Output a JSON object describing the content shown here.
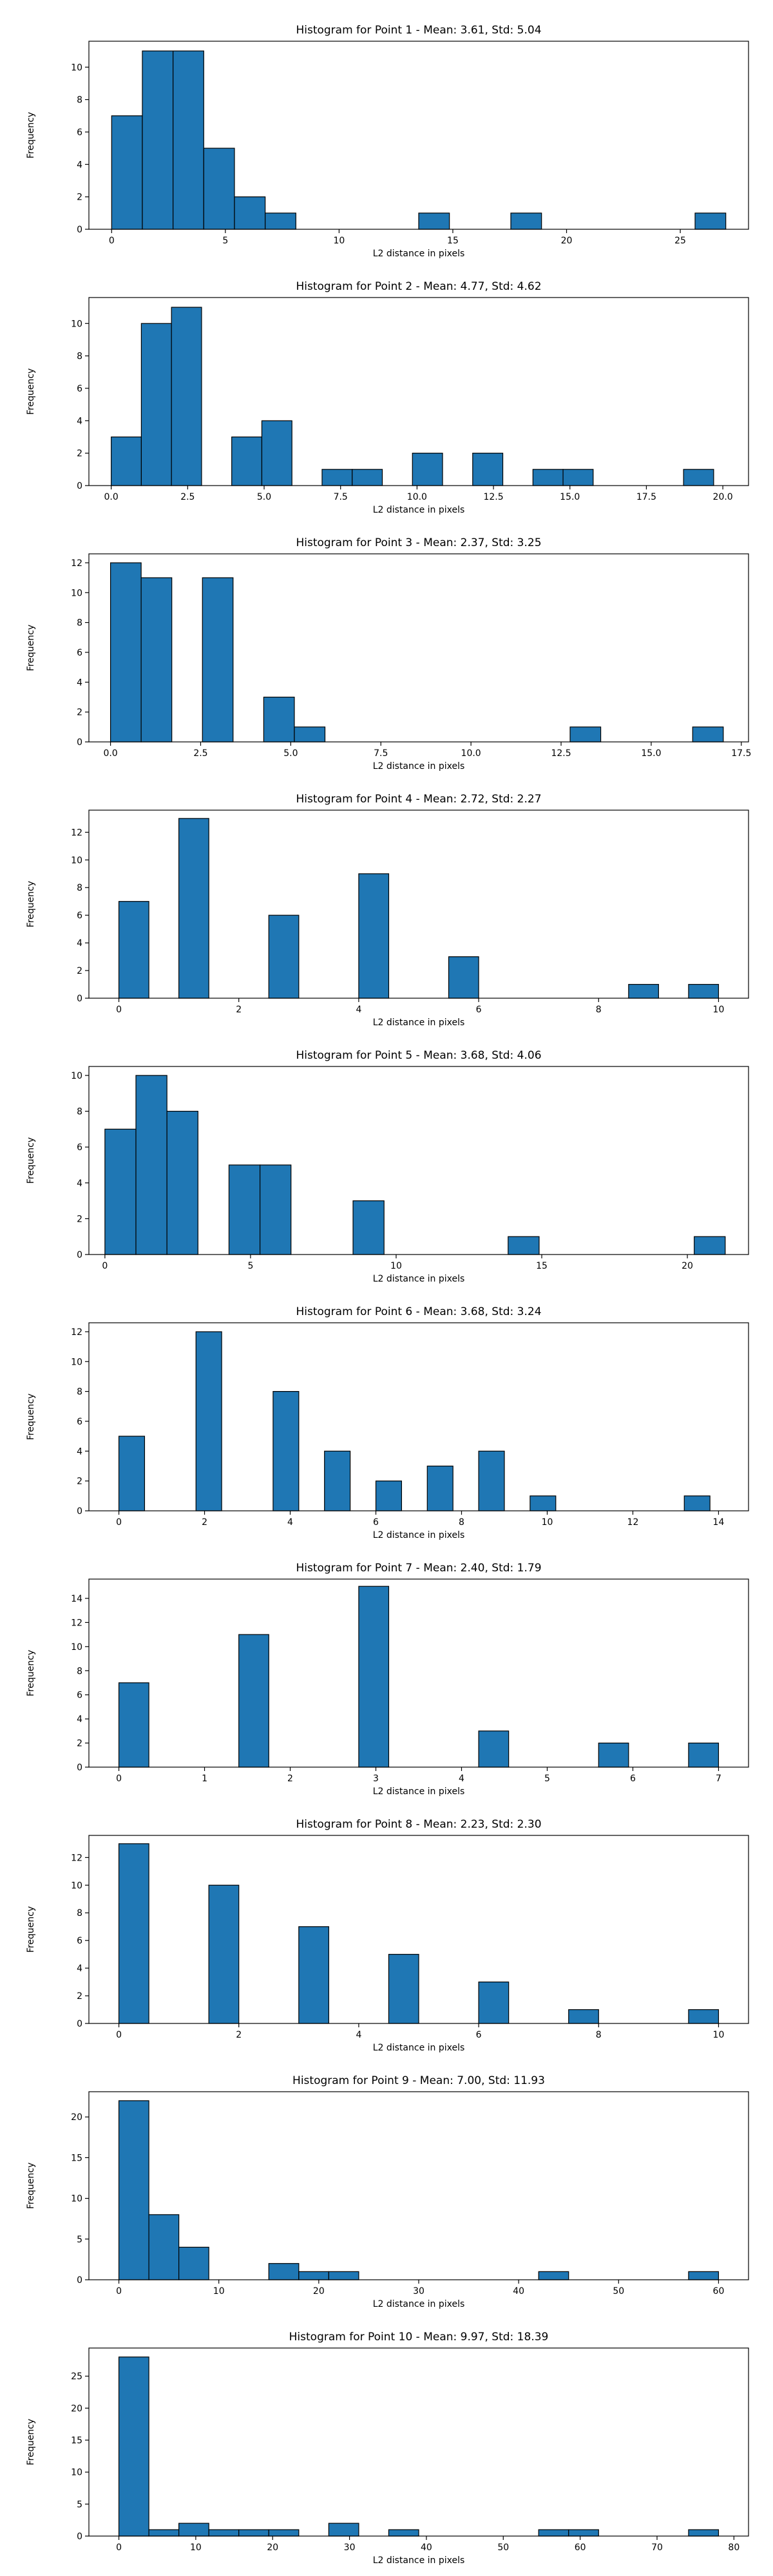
{
  "chart_data": [
    {
      "type": "bar",
      "title": "Histogram for Point 1 - Mean: 3.61, Std: 5.04",
      "xlabel": "L2 distance in pixels",
      "ylabel": "Frequency",
      "xlim": [
        -1.0,
        28.0
      ],
      "ylim": [
        0,
        11.6
      ],
      "xticks": [
        0,
        5,
        10,
        15,
        20,
        25
      ],
      "xtick_labels": [
        "0",
        "5",
        "10",
        "15",
        "20",
        "25"
      ],
      "yticks": [
        0,
        2,
        4,
        6,
        8,
        10
      ],
      "ytick_labels": [
        "0",
        "2",
        "4",
        "6",
        "8",
        "10"
      ],
      "bin_start": 0.0,
      "bin_width": 1.35,
      "values": [
        7,
        11,
        11,
        5,
        2,
        1,
        0,
        0,
        0,
        0,
        1,
        0,
        0,
        1,
        0,
        0,
        0,
        0,
        0,
        1
      ],
      "grid": false,
      "legend": "none",
      "bar_color": "#1f77b4",
      "edge_color": "#000000"
    },
    {
      "type": "bar",
      "title": "Histogram for Point 2 - Mean: 4.77, Std: 4.62",
      "xlabel": "L2 distance in pixels",
      "ylabel": "Frequency",
      "xlim": [
        -0.73,
        20.84
      ],
      "ylim": [
        0,
        11.6
      ],
      "xticks": [
        0,
        2.5,
        5,
        7.5,
        10,
        12.5,
        15,
        17.5,
        20
      ],
      "xtick_labels": [
        "0.0",
        "2.5",
        "5.0",
        "7.5",
        "10.0",
        "12.5",
        "15.0",
        "17.5",
        "20.0"
      ],
      "yticks": [
        0,
        2,
        4,
        6,
        8,
        10
      ],
      "ytick_labels": [
        "0",
        "2",
        "4",
        "6",
        "8",
        "10"
      ],
      "bin_start": 0.0,
      "bin_width": 0.985,
      "values": [
        3,
        10,
        11,
        0,
        3,
        4,
        0,
        1,
        1,
        0,
        2,
        0,
        2,
        0,
        1,
        1,
        0,
        0,
        0,
        1
      ],
      "grid": false,
      "legend": "none",
      "bar_color": "#1f77b4",
      "edge_color": "#000000"
    },
    {
      "type": "bar",
      "title": "Histogram for Point 3 - Mean: 2.37, Std: 3.25",
      "xlabel": "L2 distance in pixels",
      "ylabel": "Frequency",
      "xlim": [
        -0.6,
        17.7
      ],
      "ylim": [
        0,
        12.6
      ],
      "xticks": [
        0,
        2.5,
        5,
        7.5,
        10,
        12.5,
        15,
        17.5
      ],
      "xtick_labels": [
        "0.0",
        "2.5",
        "5.0",
        "7.5",
        "10.0",
        "12.5",
        "15.0",
        "17.5"
      ],
      "yticks": [
        0,
        2,
        4,
        6,
        8,
        10,
        12
      ],
      "ytick_labels": [
        "0",
        "2",
        "4",
        "6",
        "8",
        "10",
        "12"
      ],
      "bin_start": 0.0,
      "bin_width": 0.85,
      "values": [
        12,
        11,
        0,
        11,
        0,
        3,
        1,
        0,
        0,
        0,
        0,
        0,
        0,
        0,
        0,
        1,
        0,
        0,
        0,
        1
      ],
      "grid": false,
      "legend": "none",
      "bar_color": "#1f77b4",
      "edge_color": "#000000"
    },
    {
      "type": "bar",
      "title": "Histogram for Point 4 - Mean: 2.72, Std: 2.27",
      "xlabel": "L2 distance in pixels",
      "ylabel": "Frequency",
      "xlim": [
        -0.5,
        10.5
      ],
      "ylim": [
        0,
        13.6
      ],
      "xticks": [
        0,
        2,
        4,
        6,
        8,
        10
      ],
      "xtick_labels": [
        "0",
        "2",
        "4",
        "6",
        "8",
        "10"
      ],
      "yticks": [
        0,
        2,
        4,
        6,
        8,
        10,
        12
      ],
      "ytick_labels": [
        "0",
        "2",
        "4",
        "6",
        "8",
        "10",
        "12"
      ],
      "bin_start": 0.0,
      "bin_width": 0.5,
      "values": [
        7,
        0,
        13,
        0,
        0,
        6,
        0,
        0,
        9,
        0,
        0,
        3,
        0,
        0,
        0,
        0,
        0,
        1,
        0,
        1
      ],
      "grid": false,
      "legend": "none",
      "bar_color": "#1f77b4",
      "edge_color": "#000000"
    },
    {
      "type": "bar",
      "title": "Histogram for Point 5 - Mean: 3.68, Std: 4.06",
      "xlabel": "L2 distance in pixels",
      "ylabel": "Frequency",
      "xlim": [
        -0.55,
        22.1
      ],
      "ylim": [
        0,
        10.5
      ],
      "xticks": [
        0,
        5,
        10,
        15,
        20
      ],
      "xtick_labels": [
        "0",
        "5",
        "10",
        "15",
        "20"
      ],
      "yticks": [
        0,
        2,
        4,
        6,
        8,
        10
      ],
      "ytick_labels": [
        "0",
        "2",
        "4",
        "6",
        "8",
        "10"
      ],
      "bin_start": 0.0,
      "bin_width": 1.065,
      "values": [
        7,
        10,
        8,
        0,
        5,
        5,
        0,
        0,
        3,
        0,
        0,
        0,
        0,
        1,
        0,
        0,
        0,
        0,
        0,
        1
      ],
      "grid": false,
      "legend": "none",
      "bar_color": "#1f77b4",
      "edge_color": "#000000"
    },
    {
      "type": "bar",
      "title": "Histogram for Point 6 - Mean: 3.68, Std: 3.24",
      "xlabel": "L2 distance in pixels",
      "ylabel": "Frequency",
      "xlim": [
        -0.7,
        14.7
      ],
      "ylim": [
        0,
        12.6
      ],
      "xticks": [
        0,
        2,
        4,
        6,
        8,
        10,
        12,
        14
      ],
      "xtick_labels": [
        "0",
        "2",
        "4",
        "6",
        "8",
        "10",
        "12",
        "14"
      ],
      "yticks": [
        0,
        2,
        4,
        6,
        8,
        10,
        12
      ],
      "ytick_labels": [
        "0",
        "2",
        "4",
        "6",
        "8",
        "10",
        "12"
      ],
      "bin_start": 0.0,
      "bin_width": 0.6,
      "values": [
        5,
        0,
        0,
        12,
        0,
        0,
        8,
        0,
        4,
        0,
        2,
        0,
        3,
        0,
        4,
        0,
        1,
        0,
        0,
        0,
        0,
        0,
        1
      ],
      "grid": false,
      "legend": "none",
      "bar_color": "#1f77b4",
      "edge_color": "#000000"
    },
    {
      "type": "bar",
      "title": "Histogram for Point 7 - Mean: 2.40, Std: 1.79",
      "xlabel": "L2 distance in pixels",
      "ylabel": "Frequency",
      "xlim": [
        -0.35,
        7.35
      ],
      "ylim": [
        0,
        15.6
      ],
      "xticks": [
        0,
        1,
        2,
        3,
        4,
        5,
        6,
        7
      ],
      "xtick_labels": [
        "0",
        "1",
        "2",
        "3",
        "4",
        "5",
        "6",
        "7"
      ],
      "yticks": [
        0,
        2,
        4,
        6,
        8,
        10,
        12,
        14
      ],
      "ytick_labels": [
        "0",
        "2",
        "4",
        "6",
        "8",
        "10",
        "12",
        "14"
      ],
      "bin_start": 0.0,
      "bin_width": 0.35,
      "values": [
        7,
        0,
        0,
        0,
        11,
        0,
        0,
        0,
        15,
        0,
        0,
        0,
        3,
        0,
        0,
        0,
        2,
        0,
        0,
        2
      ],
      "grid": false,
      "legend": "none",
      "bar_color": "#1f77b4",
      "edge_color": "#000000"
    },
    {
      "type": "bar",
      "title": "Histogram for Point 8 - Mean: 2.23, Std: 2.30",
      "xlabel": "L2 distance in pixels",
      "ylabel": "Frequency",
      "xlim": [
        -0.5,
        10.5
      ],
      "ylim": [
        0,
        13.6
      ],
      "xticks": [
        0,
        2,
        4,
        6,
        8,
        10
      ],
      "xtick_labels": [
        "0",
        "2",
        "4",
        "6",
        "8",
        "10"
      ],
      "yticks": [
        0,
        2,
        4,
        6,
        8,
        10,
        12
      ],
      "ytick_labels": [
        "0",
        "2",
        "4",
        "6",
        "8",
        "10",
        "12"
      ],
      "bin_start": 0.0,
      "bin_width": 0.5,
      "values": [
        13,
        0,
        0,
        10,
        0,
        0,
        7,
        0,
        0,
        5,
        0,
        0,
        3,
        0,
        0,
        1,
        0,
        0,
        0,
        1
      ],
      "grid": false,
      "legend": "none",
      "bar_color": "#1f77b4",
      "edge_color": "#000000"
    },
    {
      "type": "bar",
      "title": "Histogram for Point 9 - Mean: 7.00, Std: 11.93",
      "xlabel": "L2 distance in pixels",
      "ylabel": "Frequency",
      "xlim": [
        -3.0,
        63.0
      ],
      "ylim": [
        0,
        23.1
      ],
      "xticks": [
        0,
        10,
        20,
        30,
        40,
        50,
        60
      ],
      "xtick_labels": [
        "0",
        "10",
        "20",
        "30",
        "40",
        "50",
        "60"
      ],
      "yticks": [
        0,
        5,
        10,
        15,
        20
      ],
      "ytick_labels": [
        "0",
        "5",
        "10",
        "15",
        "20"
      ],
      "bin_start": 0.0,
      "bin_width": 3.0,
      "values": [
        22,
        8,
        4,
        0,
        0,
        2,
        1,
        1,
        0,
        0,
        0,
        0,
        0,
        0,
        1,
        0,
        0,
        0,
        0,
        1
      ],
      "grid": false,
      "legend": "none",
      "bar_color": "#1f77b4",
      "edge_color": "#000000"
    },
    {
      "type": "bar",
      "title": "Histogram for Point 10 - Mean: 9.97, Std: 18.39",
      "xlabel": "L2 distance in pixels",
      "ylabel": "Frequency",
      "xlim": [
        -3.9,
        81.9
      ],
      "ylim": [
        0,
        29.4
      ],
      "xticks": [
        0,
        10,
        20,
        30,
        40,
        50,
        60,
        70,
        80
      ],
      "xtick_labels": [
        "0",
        "10",
        "20",
        "30",
        "40",
        "50",
        "60",
        "70",
        "80"
      ],
      "yticks": [
        0,
        5,
        10,
        15,
        20,
        25
      ],
      "ytick_labels": [
        "0",
        "5",
        "10",
        "15",
        "20",
        "25"
      ],
      "bin_start": 0.0,
      "bin_width": 3.9,
      "values": [
        28,
        1,
        2,
        1,
        1,
        1,
        0,
        2,
        0,
        1,
        0,
        0,
        0,
        0,
        1,
        1,
        0,
        0,
        0,
        1
      ],
      "grid": false,
      "legend": "none",
      "bar_color": "#1f77b4",
      "edge_color": "#000000"
    }
  ]
}
